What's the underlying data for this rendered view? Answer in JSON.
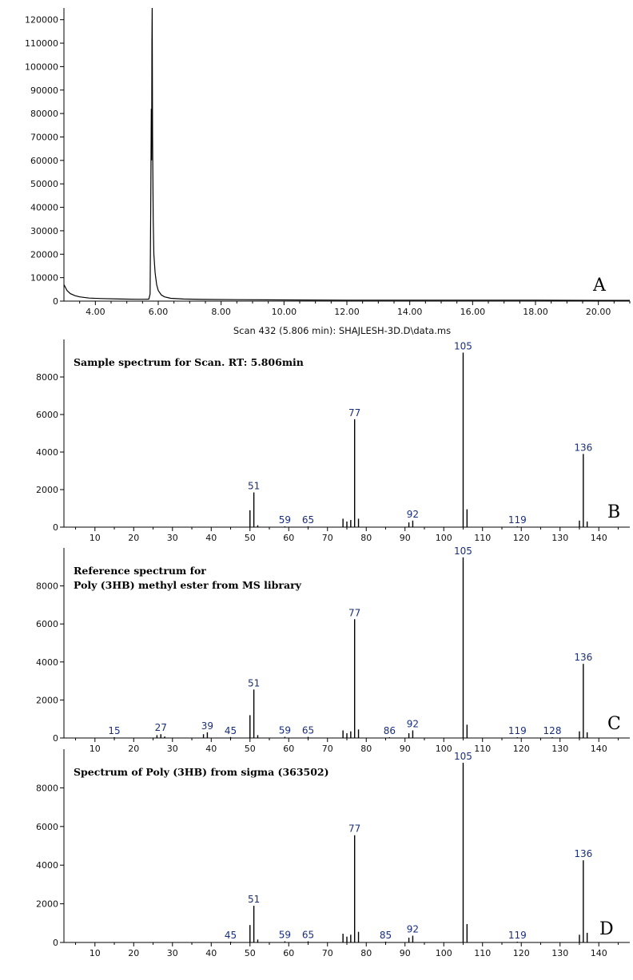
{
  "figure": {
    "scan_caption": "Scan 432 (5.806 min): SHAJLESH-3D.D\\data.ms"
  },
  "chart_data": [
    {
      "id": "A",
      "type": "line",
      "panel_label": "A",
      "xlim": [
        3.0,
        21.0
      ],
      "ylim": [
        0,
        125000
      ],
      "x_ticks": [
        4,
        6,
        8,
        10,
        12,
        14,
        16,
        18,
        20
      ],
      "x_tick_labels": [
        "4.00",
        "6.00",
        "8.00",
        "10.00",
        "12.00",
        "14.00",
        "16.00",
        "18.00",
        "20.00"
      ],
      "y_ticks": [
        0,
        10000,
        20000,
        30000,
        40000,
        50000,
        60000,
        70000,
        80000,
        90000,
        100000,
        110000,
        120000
      ],
      "y_tick_labels": [
        "0",
        "10000",
        "20000",
        "30000",
        "40000",
        "50000",
        "60000",
        "70000",
        "80000",
        "90000",
        "100000",
        "110000",
        "120000"
      ],
      "points": [
        [
          3.0,
          7000
        ],
        [
          3.1,
          4500
        ],
        [
          3.2,
          3200
        ],
        [
          3.35,
          2300
        ],
        [
          3.5,
          1800
        ],
        [
          3.8,
          1300
        ],
        [
          4.2,
          1100
        ],
        [
          4.8,
          900
        ],
        [
          5.3,
          800
        ],
        [
          5.6,
          800
        ],
        [
          5.7,
          850
        ],
        [
          5.74,
          3000
        ],
        [
          5.76,
          40000
        ],
        [
          5.78,
          82000
        ],
        [
          5.79,
          60000
        ],
        [
          5.8,
          110000
        ],
        [
          5.806,
          125000
        ],
        [
          5.82,
          70000
        ],
        [
          5.84,
          35000
        ],
        [
          5.86,
          20000
        ],
        [
          5.9,
          12000
        ],
        [
          5.95,
          7000
        ],
        [
          6.0,
          4500
        ],
        [
          6.1,
          2600
        ],
        [
          6.2,
          1800
        ],
        [
          6.4,
          1200
        ],
        [
          6.8,
          900
        ],
        [
          7.5,
          700
        ],
        [
          8.5,
          600
        ],
        [
          10.0,
          500
        ],
        [
          12.0,
          400
        ],
        [
          14.0,
          400
        ],
        [
          16.0,
          400
        ],
        [
          18.0,
          400
        ],
        [
          20.0,
          300
        ],
        [
          21.0,
          300
        ]
      ]
    },
    {
      "id": "B",
      "type": "bar",
      "panel_label": "B",
      "annotation": [
        "Sample spectrum for Scan. RT: 5.806min"
      ],
      "xlim": [
        2,
        148
      ],
      "ylim": [
        0,
        10000
      ],
      "x_ticks": [
        10,
        20,
        30,
        40,
        50,
        60,
        70,
        80,
        90,
        100,
        110,
        120,
        130,
        140
      ],
      "y_ticks": [
        0,
        2000,
        4000,
        6000,
        8000
      ],
      "peaks": [
        [
          50,
          900
        ],
        [
          51,
          1850
        ],
        [
          52,
          100
        ],
        [
          59,
          40
        ],
        [
          65,
          40
        ],
        [
          74,
          450
        ],
        [
          75,
          300
        ],
        [
          76,
          380
        ],
        [
          77,
          5750
        ],
        [
          78,
          450
        ],
        [
          91,
          250
        ],
        [
          92,
          350
        ],
        [
          105,
          9300
        ],
        [
          106,
          950
        ],
        [
          119,
          40
        ],
        [
          135,
          350
        ],
        [
          136,
          3900
        ],
        [
          137,
          300
        ]
      ],
      "peak_labels": [
        {
          "mz": 51,
          "text": "51"
        },
        {
          "mz": 59,
          "text": "59"
        },
        {
          "mz": 65,
          "text": "65"
        },
        {
          "mz": 77,
          "text": "77"
        },
        {
          "mz": 92,
          "text": "92"
        },
        {
          "mz": 105,
          "text": "105"
        },
        {
          "mz": 119,
          "text": "119"
        },
        {
          "mz": 136,
          "text": "136"
        }
      ]
    },
    {
      "id": "C",
      "type": "bar",
      "panel_label": "C",
      "annotation": [
        "Reference spectrum for",
        "Poly (3HB) methyl ester from MS library"
      ],
      "xlim": [
        2,
        148
      ],
      "ylim": [
        0,
        10000
      ],
      "x_ticks": [
        10,
        20,
        30,
        40,
        50,
        60,
        70,
        80,
        90,
        100,
        110,
        120,
        130,
        140
      ],
      "y_ticks": [
        0,
        2000,
        4000,
        6000,
        8000
      ],
      "peaks": [
        [
          15,
          40
        ],
        [
          26,
          150
        ],
        [
          27,
          200
        ],
        [
          28,
          80
        ],
        [
          38,
          200
        ],
        [
          39,
          300
        ],
        [
          45,
          50
        ],
        [
          50,
          1200
        ],
        [
          51,
          2550
        ],
        [
          52,
          150
        ],
        [
          59,
          60
        ],
        [
          65,
          60
        ],
        [
          74,
          400
        ],
        [
          75,
          250
        ],
        [
          76,
          350
        ],
        [
          77,
          6250
        ],
        [
          78,
          450
        ],
        [
          86,
          40
        ],
        [
          91,
          250
        ],
        [
          92,
          400
        ],
        [
          105,
          9500
        ],
        [
          106,
          700
        ],
        [
          119,
          40
        ],
        [
          128,
          40
        ],
        [
          135,
          350
        ],
        [
          136,
          3900
        ],
        [
          137,
          300
        ]
      ],
      "peak_labels": [
        {
          "mz": 15,
          "text": "15"
        },
        {
          "mz": 27,
          "text": "27"
        },
        {
          "mz": 39,
          "text": "39"
        },
        {
          "mz": 45,
          "text": "45"
        },
        {
          "mz": 51,
          "text": "51"
        },
        {
          "mz": 59,
          "text": "59"
        },
        {
          "mz": 65,
          "text": "65"
        },
        {
          "mz": 77,
          "text": "77"
        },
        {
          "mz": 86,
          "text": "86"
        },
        {
          "mz": 92,
          "text": "92"
        },
        {
          "mz": 105,
          "text": "105"
        },
        {
          "mz": 119,
          "text": "119"
        },
        {
          "mz": 128,
          "text": "128"
        },
        {
          "mz": 136,
          "text": "136"
        }
      ]
    },
    {
      "id": "D",
      "type": "bar",
      "panel_label": "D",
      "annotation": [
        "Spectrum of  Poly (3HB) from sigma (363502)"
      ],
      "xlim": [
        2,
        148
      ],
      "ylim": [
        0,
        10000
      ],
      "x_ticks": [
        10,
        20,
        30,
        40,
        50,
        60,
        70,
        80,
        90,
        100,
        110,
        120,
        130,
        140
      ],
      "y_ticks": [
        0,
        2000,
        4000,
        6000,
        8000
      ],
      "peaks": [
        [
          45,
          40
        ],
        [
          50,
          900
        ],
        [
          51,
          1900
        ],
        [
          52,
          150
        ],
        [
          59,
          60
        ],
        [
          65,
          60
        ],
        [
          74,
          450
        ],
        [
          75,
          300
        ],
        [
          76,
          400
        ],
        [
          77,
          5550
        ],
        [
          78,
          550
        ],
        [
          85,
          40
        ],
        [
          91,
          250
        ],
        [
          92,
          350
        ],
        [
          105,
          9300
        ],
        [
          106,
          950
        ],
        [
          119,
          40
        ],
        [
          135,
          400
        ],
        [
          136,
          4250
        ],
        [
          137,
          500
        ]
      ],
      "peak_labels": [
        {
          "mz": 45,
          "text": "45"
        },
        {
          "mz": 51,
          "text": "51"
        },
        {
          "mz": 59,
          "text": "59"
        },
        {
          "mz": 65,
          "text": "65"
        },
        {
          "mz": 77,
          "text": "77"
        },
        {
          "mz": 85,
          "text": "85"
        },
        {
          "mz": 92,
          "text": "92"
        },
        {
          "mz": 105,
          "text": "105"
        },
        {
          "mz": 119,
          "text": "119"
        },
        {
          "mz": 136,
          "text": "136"
        }
      ]
    }
  ]
}
